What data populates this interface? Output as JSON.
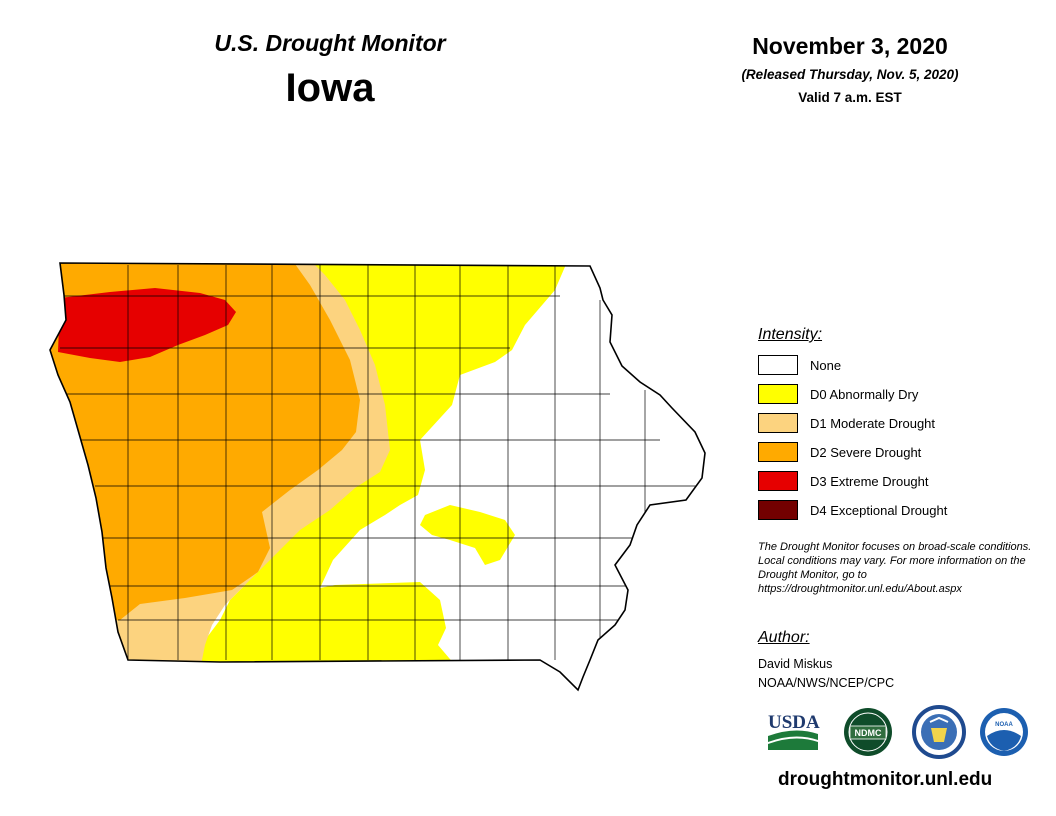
{
  "header": {
    "product": "U.S. Drought Monitor",
    "state": "Iowa",
    "date": "November 3, 2020",
    "released": "(Released Thursday, Nov. 5, 2020)",
    "valid": "Valid 7 a.m. EST"
  },
  "legend": {
    "heading": "Intensity:",
    "items": [
      {
        "label": "None",
        "color": "#ffffff"
      },
      {
        "label": "D0 Abnormally Dry",
        "color": "#ffff00"
      },
      {
        "label": "D1 Moderate Drought",
        "color": "#fcd37f"
      },
      {
        "label": "D2 Severe Drought",
        "color": "#ffaa00"
      },
      {
        "label": "D3 Extreme Drought",
        "color": "#e60000"
      },
      {
        "label": "D4 Exceptional Drought",
        "color": "#730000"
      }
    ]
  },
  "note": "The Drought Monitor focuses on broad-scale conditions. Local conditions may vary. For more information on the Drought Monitor, go to https://droughtmonitor.unl.edu/About.aspx",
  "author": {
    "heading": "Author:",
    "name": "David Miskus",
    "org": "NOAA/NWS/NCEP/CPC"
  },
  "logos": {
    "usda": "USDA",
    "ndmc": "NDMC",
    "noaa": "NOAA"
  },
  "website": "droughtmonitor.unl.edu"
}
